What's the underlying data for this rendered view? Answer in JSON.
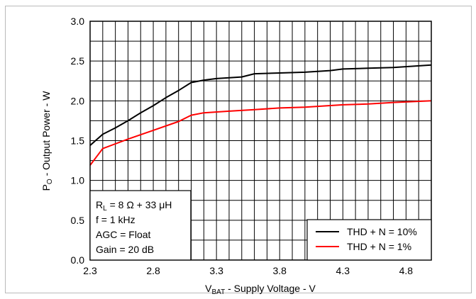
{
  "chart_data": {
    "type": "line",
    "xlabel": {
      "main": "V",
      "sub": "BAT",
      "rest": " - Supply Voltage - V"
    },
    "ylabel": {
      "main": "P",
      "sub": "O",
      "rest": " - Output Power - W"
    },
    "xlim": [
      2.3,
      5.0
    ],
    "ylim": [
      0.0,
      3.0
    ],
    "xticks": [
      "2.3",
      "2.8",
      "3.3",
      "3.8",
      "4.3",
      "4.8"
    ],
    "xtick_values": [
      2.3,
      2.8,
      3.3,
      3.8,
      4.3,
      4.8
    ],
    "yticks": [
      "0.0",
      "0.5",
      "1.0",
      "1.5",
      "2.0",
      "2.5",
      "3.0"
    ],
    "ytick_values": [
      0.0,
      0.5,
      1.0,
      1.5,
      2.0,
      2.5,
      3.0
    ],
    "grid": true,
    "legend_position": "bottom-right",
    "conditions": {
      "line1": {
        "main": "R",
        "sub": "L",
        "rest": " = 8 Ω + 33 μH"
      },
      "line2": "f = 1 kHz",
      "line3": "AGC = Float",
      "line4": "Gain = 20 dB"
    },
    "series": [
      {
        "name": "THD + N = 10%",
        "color": "#000000",
        "points": [
          [
            2.3,
            1.44
          ],
          [
            2.4,
            1.58
          ],
          [
            2.5,
            1.66
          ],
          [
            2.6,
            1.75
          ],
          [
            2.7,
            1.85
          ],
          [
            2.8,
            1.94
          ],
          [
            2.9,
            2.04
          ],
          [
            3.0,
            2.13
          ],
          [
            3.1,
            2.23
          ],
          [
            3.2,
            2.26
          ],
          [
            3.3,
            2.28
          ],
          [
            3.5,
            2.3
          ],
          [
            3.6,
            2.34
          ],
          [
            3.8,
            2.35
          ],
          [
            4.0,
            2.36
          ],
          [
            4.2,
            2.38
          ],
          [
            4.3,
            2.4
          ],
          [
            4.5,
            2.41
          ],
          [
            4.7,
            2.42
          ],
          [
            5.0,
            2.45
          ]
        ]
      },
      {
        "name": "THD + N = 1%",
        "color": "#ff0000",
        "points": [
          [
            2.3,
            1.19
          ],
          [
            2.4,
            1.4
          ],
          [
            2.5,
            1.46
          ],
          [
            2.6,
            1.52
          ],
          [
            2.8,
            1.63
          ],
          [
            3.0,
            1.74
          ],
          [
            3.1,
            1.82
          ],
          [
            3.2,
            1.85
          ],
          [
            3.4,
            1.87
          ],
          [
            3.6,
            1.89
          ],
          [
            3.8,
            1.91
          ],
          [
            4.0,
            1.92
          ],
          [
            4.3,
            1.95
          ],
          [
            4.5,
            1.96
          ],
          [
            4.7,
            1.98
          ],
          [
            5.0,
            2.0
          ]
        ]
      }
    ]
  }
}
